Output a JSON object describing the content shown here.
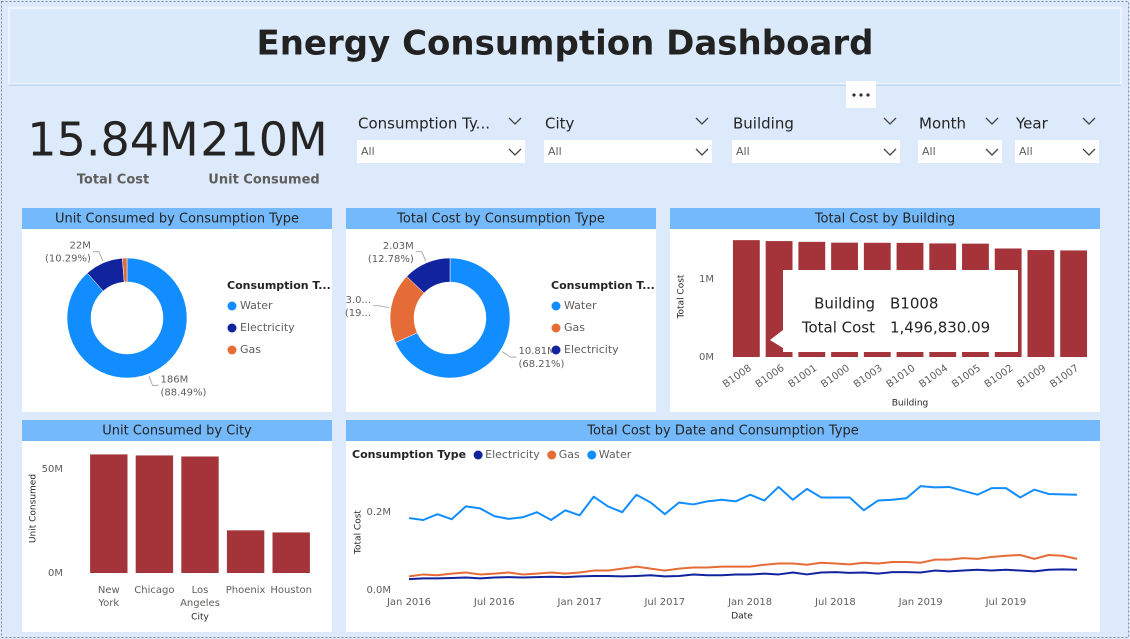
{
  "title": "Energy Consumption Dashboard",
  "kpis": [
    {
      "value": "15.84M",
      "label": "Total Cost"
    },
    {
      "value": "210M",
      "label": "Unit Consumed"
    }
  ],
  "slicers": [
    {
      "label": "Consumption Ty...",
      "value": "All"
    },
    {
      "label": "City",
      "value": "All"
    },
    {
      "label": "Building",
      "value": "All"
    },
    {
      "label": "Month",
      "value": "All"
    },
    {
      "label": "Year",
      "value": "All"
    }
  ],
  "tooltip": {
    "rows": [
      [
        "Building",
        "B1008"
      ],
      [
        "Total Cost",
        "1,496,830.09"
      ]
    ]
  },
  "chart_data": [
    {
      "type": "donut",
      "title": "Unit Consumed by Consumption Type",
      "legend_title": "Consumption T...",
      "categories": [
        "Water",
        "Electricity",
        "Gas"
      ],
      "values": [
        185.8,
        21.6,
        2.6
      ],
      "value_labels": [
        "186M",
        "22M",
        null
      ],
      "pct_labels": [
        "(88.49%)",
        "(10.29%)",
        null
      ],
      "colors": [
        "#118dff",
        "#12239e",
        "#e66c37"
      ]
    },
    {
      "type": "donut",
      "title": "Total Cost by Consumption Type",
      "legend_title": "Consumption T...",
      "categories": [
        "Water",
        "Gas",
        "Electricity"
      ],
      "values": [
        10.81,
        3.0,
        2.03
      ],
      "value_labels": [
        "10.81M",
        "3.0...",
        "2.03M"
      ],
      "pct_labels": [
        "(68.21%)",
        "(19...",
        "(12.78%)"
      ],
      "colors": [
        "#118dff",
        "#e66c37",
        "#12239e"
      ]
    },
    {
      "type": "bar",
      "title": "Total Cost by Building",
      "x_label": "Building",
      "y_label": "Total Cost",
      "categories": [
        "B1008",
        "B1006",
        "B1001",
        "B1000",
        "B1003",
        "B1010",
        "B1004",
        "B1005",
        "B1002",
        "B1009",
        "B1007"
      ],
      "values": [
        1496830.09,
        1485000,
        1475000,
        1465000,
        1463000,
        1462000,
        1455000,
        1452000,
        1390000,
        1370000,
        1365000
      ],
      "color": "#a4343a",
      "ylim": [
        0,
        1550000
      ],
      "yticks": [
        {
          "value": 0,
          "label": "0M"
        },
        {
          "value": 1000000,
          "label": "1M"
        }
      ]
    },
    {
      "type": "bar",
      "title": "Unit Consumed by City",
      "x_label": "City",
      "y_label": "Unit Consumed",
      "categories": [
        "New York",
        "Chicago",
        "Los Angeles",
        "Phoenix",
        "Houston"
      ],
      "values": [
        57000000,
        56500000,
        56000000,
        20500000,
        19500000
      ],
      "color": "#a4343a",
      "ylim": [
        0,
        62000000
      ],
      "yticks": [
        {
          "value": 0,
          "label": "0M"
        },
        {
          "value": 50000000,
          "label": "50M"
        }
      ]
    },
    {
      "type": "line",
      "title": "Total Cost by Date and Consumption Type",
      "x_label": "Date",
      "y_label": "Total Cost",
      "legend_title": "Consumption Type",
      "x": [
        "2016-01",
        "2016-02",
        "2016-03",
        "2016-04",
        "2016-05",
        "2016-06",
        "2016-07",
        "2016-08",
        "2016-09",
        "2016-10",
        "2016-11",
        "2016-12",
        "2017-01",
        "2017-02",
        "2017-03",
        "2017-04",
        "2017-05",
        "2017-06",
        "2017-07",
        "2017-08",
        "2017-09",
        "2017-10",
        "2017-11",
        "2017-12",
        "2018-01",
        "2018-02",
        "2018-03",
        "2018-04",
        "2018-05",
        "2018-06",
        "2018-07",
        "2018-08",
        "2018-09",
        "2018-10",
        "2018-11",
        "2018-12",
        "2019-01",
        "2019-02",
        "2019-03",
        "2019-04",
        "2019-05",
        "2019-06",
        "2019-07",
        "2019-08",
        "2019-09",
        "2019-10",
        "2019-11",
        "2019-12"
      ],
      "series": [
        {
          "name": "Electricity",
          "color": "#12239e",
          "values": [
            28000,
            30000,
            30000,
            31000,
            32000,
            30000,
            32000,
            33000,
            32000,
            33000,
            34000,
            33000,
            35000,
            36000,
            36000,
            35000,
            36000,
            38000,
            35000,
            36000,
            40000,
            38000,
            38000,
            40000,
            40000,
            42000,
            40000,
            45000,
            40000,
            45000,
            46000,
            44000,
            45000,
            42000,
            46000,
            46000,
            45000,
            50000,
            48000,
            50000,
            52000,
            50000,
            52000,
            50000,
            48000,
            52000,
            53000,
            52000
          ]
        },
        {
          "name": "Gas",
          "color": "#e66c37",
          "values": [
            35000,
            40000,
            38000,
            42000,
            45000,
            40000,
            42000,
            45000,
            40000,
            42000,
            45000,
            42000,
            45000,
            50000,
            50000,
            55000,
            60000,
            55000,
            50000,
            55000,
            58000,
            58000,
            60000,
            60000,
            60000,
            65000,
            68000,
            68000,
            65000,
            70000,
            68000,
            66000,
            70000,
            68000,
            72000,
            72000,
            70000,
            78000,
            78000,
            82000,
            80000,
            85000,
            88000,
            90000,
            80000,
            90000,
            88000,
            80000
          ]
        },
        {
          "name": "Water",
          "color": "#118dff",
          "values": [
            185000,
            180000,
            195000,
            182000,
            215000,
            210000,
            190000,
            183000,
            187000,
            200000,
            180000,
            205000,
            192000,
            240000,
            215000,
            200000,
            245000,
            225000,
            195000,
            225000,
            220000,
            228000,
            232000,
            228000,
            245000,
            230000,
            265000,
            232000,
            260000,
            238000,
            238000,
            238000,
            205000,
            230000,
            232000,
            236000,
            267000,
            264000,
            265000,
            255000,
            245000,
            262000,
            262000,
            238000,
            258000,
            247000,
            246000,
            245000
          ]
        }
      ],
      "ylim": [
        0,
        270000
      ],
      "yticks": [
        {
          "value": 0,
          "label": "0.0M"
        },
        {
          "value": 200000,
          "label": "0.2M"
        }
      ],
      "xticks": [
        {
          "value": "2016-01",
          "label": "Jan 2016"
        },
        {
          "value": "2016-07",
          "label": "Jul 2016"
        },
        {
          "value": "2017-01",
          "label": "Jan 2017"
        },
        {
          "value": "2017-07",
          "label": "Jul 2017"
        },
        {
          "value": "2018-01",
          "label": "Jan 2018"
        },
        {
          "value": "2018-07",
          "label": "Jul 2018"
        },
        {
          "value": "2019-01",
          "label": "Jan 2019"
        },
        {
          "value": "2019-07",
          "label": "Jul 2019"
        }
      ]
    }
  ]
}
